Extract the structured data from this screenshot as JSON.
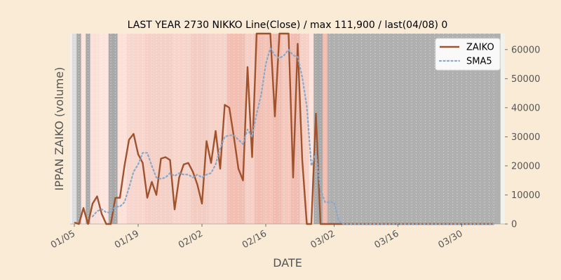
{
  "chart_data": {
    "type": "line",
    "title": "LAST YEAR 2730 NIKKO Line(Close) / max 111,900 / last(04/08) 0",
    "xlabel": "DATE",
    "ylabel": "IPPAN ZAIKO (volume)",
    "start_date": "2024-01-05",
    "x_ticks": [
      {
        "label": "01/05",
        "date": "2024-01-05"
      },
      {
        "label": "01/19",
        "date": "2024-01-19"
      },
      {
        "label": "02/02",
        "date": "2024-02-02"
      },
      {
        "label": "02/16",
        "date": "2024-02-16"
      },
      {
        "label": "03/02",
        "date": "2024-03-02"
      },
      {
        "label": "03/16",
        "date": "2024-03-16"
      },
      {
        "label": "03/30",
        "date": "2024-03-30"
      }
    ],
    "ylim": [
      0,
      65500
    ],
    "y_ticks": [
      0,
      10000,
      20000,
      30000,
      40000,
      50000,
      60000
    ],
    "y_tick_labels": [
      "0",
      "10000",
      "20000",
      "30000",
      "40000",
      "50000",
      "60000"
    ],
    "legend": {
      "position": "top-right"
    },
    "series": [
      {
        "name": "ZAIKO",
        "color": "#a0522d",
        "style": "solid",
        "values": [
          500,
          0,
          5500,
          0,
          7000,
          9500,
          3500,
          0,
          0,
          9000,
          9000,
          20000,
          29000,
          31000,
          24000,
          21000,
          9000,
          14500,
          10000,
          22500,
          23000,
          22000,
          5000,
          16000,
          20500,
          21000,
          18000,
          13500,
          7000,
          28500,
          21000,
          32000,
          19000,
          41000,
          40000,
          30000,
          19000,
          15000,
          54000,
          23000,
          65500,
          65500,
          65500,
          65500,
          37000,
          65500,
          65500,
          65500,
          16000,
          62000,
          22000,
          0,
          0,
          38000,
          0,
          0,
          0,
          0,
          0,
          0,
          0,
          0,
          0,
          0,
          0,
          0,
          0,
          0,
          0,
          0,
          0,
          0,
          0,
          0,
          0,
          0,
          0,
          0,
          0,
          0,
          0,
          0,
          0,
          0,
          0,
          0,
          0,
          0,
          0,
          0,
          0,
          0,
          0
        ]
      },
      {
        "name": "SMA5",
        "color": "#8aa8c8",
        "style": "dotted",
        "values": [
          null,
          null,
          null,
          null,
          2600,
          4400,
          5100,
          4000,
          4000,
          6000,
          6000,
          7500,
          12500,
          18000,
          20500,
          24500,
          24500,
          20000,
          16000,
          15500,
          16000,
          17500,
          16500,
          17500,
          17000,
          17000,
          16000,
          17000,
          16000,
          17000,
          17500,
          20500,
          26000,
          30000,
          30500,
          30500,
          29000,
          27500,
          32500,
          30000,
          38000,
          44500,
          55000,
          60500,
          58000,
          57000,
          58000,
          60000,
          58000,
          57500,
          50500,
          40500,
          20000,
          24500,
          12000,
          7500,
          7500,
          7500,
          1000,
          0,
          0,
          0,
          0,
          0,
          0,
          0,
          0,
          0,
          0,
          0,
          0,
          0,
          0,
          0,
          0,
          0,
          0,
          0,
          0,
          0,
          0,
          0,
          0,
          0,
          0,
          0,
          0,
          0,
          0,
          0,
          0,
          0,
          0
        ]
      }
    ],
    "background_bands": [
      {
        "from": 0,
        "to": 1,
        "color": "#dcdcdc"
      },
      {
        "from": 1,
        "to": 2,
        "color": "#a9a9a9"
      },
      {
        "from": 2,
        "to": 3,
        "color": "#fde4dc"
      },
      {
        "from": 3,
        "to": 4,
        "color": "#a9a9a9"
      },
      {
        "from": 4,
        "to": 6,
        "color": "#fbe0d8"
      },
      {
        "from": 6,
        "to": 8,
        "color": "#fde4dc"
      },
      {
        "from": 8,
        "to": 10,
        "color": "#a9a9a9"
      },
      {
        "from": 10,
        "to": 12,
        "color": "#fde0d8"
      },
      {
        "from": 12,
        "to": 16,
        "color": "#f8d6cd"
      },
      {
        "from": 16,
        "to": 18,
        "color": "#f6cfc5"
      },
      {
        "from": 18,
        "to": 22,
        "color": "#f5d0c6"
      },
      {
        "from": 22,
        "to": 26,
        "color": "#f7d5cb"
      },
      {
        "from": 26,
        "to": 30,
        "color": "#f4cdc2"
      },
      {
        "from": 30,
        "to": 34,
        "color": "#f6d2c8"
      },
      {
        "from": 34,
        "to": 38,
        "color": "#f2bfb2"
      },
      {
        "from": 38,
        "to": 40,
        "color": "#f6d0c6"
      },
      {
        "from": 40,
        "to": 42,
        "color": "#f2bfb2"
      },
      {
        "from": 42,
        "to": 44,
        "color": "#f4c4b8"
      },
      {
        "from": 44,
        "to": 46,
        "color": "#f2bdb0"
      },
      {
        "from": 46,
        "to": 48,
        "color": "#f5c8bd"
      },
      {
        "from": 48,
        "to": 50,
        "color": "#f2bdb0"
      },
      {
        "from": 50,
        "to": 52,
        "color": "#f6cfc5"
      },
      {
        "from": 52,
        "to": 53,
        "color": "#fde4dc"
      },
      {
        "from": 53,
        "to": 55,
        "color": "#a9a9a9"
      },
      {
        "from": 55,
        "to": 56,
        "color": "#f2bdb0"
      },
      {
        "from": 56,
        "to": 94,
        "color": "#b0b0b0"
      }
    ]
  }
}
